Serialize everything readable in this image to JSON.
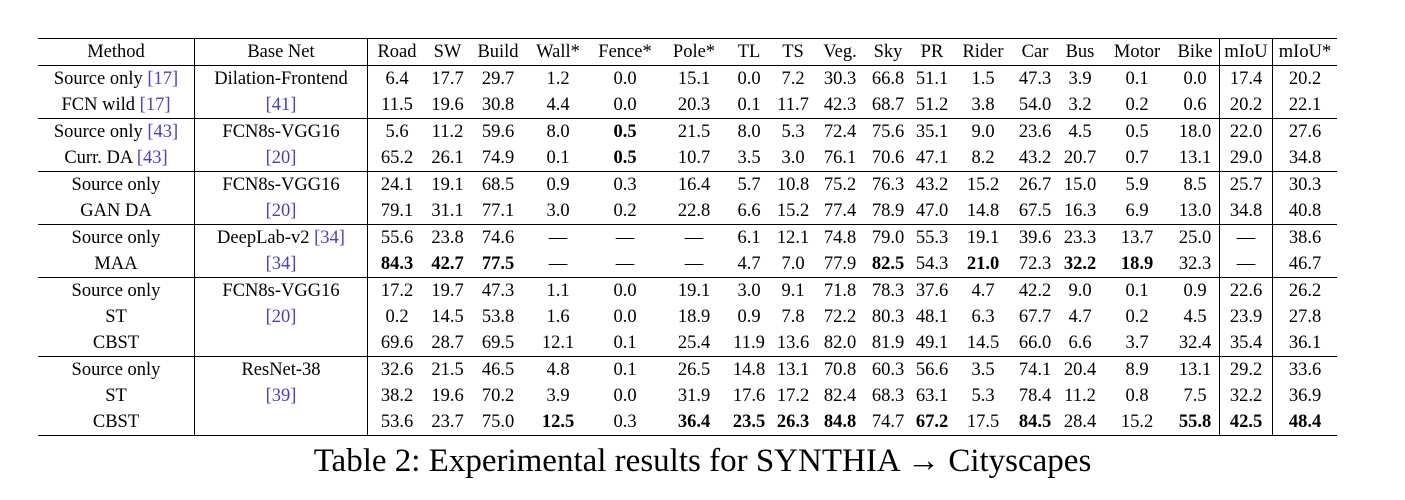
{
  "columns": [
    "Method",
    "Base Net",
    "Road",
    "SW",
    "Build",
    "Wall*",
    "Fence*",
    "Pole*",
    "TL",
    "TS",
    "Veg.",
    "Sky",
    "PR",
    "Rider",
    "Car",
    "Bus",
    "Motor",
    "Bike",
    "mIoU",
    "mIoU*"
  ],
  "column_widths": [
    156,
    172,
    58,
    43,
    58,
    62,
    72,
    66,
    44,
    44,
    50,
    46,
    42,
    60,
    44,
    46,
    68,
    48,
    52,
    64
  ],
  "groups": [
    {
      "rows": [
        {
          "method": "Source only",
          "method_cite": "[17]",
          "base": "Dilation-Frontend",
          "base_cite": "",
          "values": [
            "6.4",
            "17.7",
            "29.7",
            "1.2",
            "0.0",
            "15.1",
            "0.0",
            "7.2",
            "30.3",
            "66.8",
            "51.1",
            "1.5",
            "47.3",
            "3.9",
            "0.1",
            "0.0",
            "17.4",
            "20.2"
          ],
          "bold": []
        },
        {
          "method": "FCN wild",
          "method_cite": "[17]",
          "base": "",
          "base_cite": "[41]",
          "values": [
            "11.5",
            "19.6",
            "30.8",
            "4.4",
            "0.0",
            "20.3",
            "0.1",
            "11.7",
            "42.3",
            "68.7",
            "51.2",
            "3.8",
            "54.0",
            "3.2",
            "0.2",
            "0.6",
            "20.2",
            "22.1"
          ],
          "bold": []
        }
      ]
    },
    {
      "rows": [
        {
          "method": "Source only",
          "method_cite": "[43]",
          "base": "FCN8s-VGG16",
          "base_cite": "",
          "values": [
            "5.6",
            "11.2",
            "59.6",
            "8.0",
            "0.5",
            "21.5",
            "8.0",
            "5.3",
            "72.4",
            "75.6",
            "35.1",
            "9.0",
            "23.6",
            "4.5",
            "0.5",
            "18.0",
            "22.0",
            "27.6"
          ],
          "bold": [
            4
          ]
        },
        {
          "method": "Curr. DA",
          "method_cite": "[43]",
          "base": "",
          "base_cite": "[20]",
          "values": [
            "65.2",
            "26.1",
            "74.9",
            "0.1",
            "0.5",
            "10.7",
            "3.5",
            "3.0",
            "76.1",
            "70.6",
            "47.1",
            "8.2",
            "43.2",
            "20.7",
            "0.7",
            "13.1",
            "29.0",
            "34.8"
          ],
          "bold": [
            4
          ]
        }
      ]
    },
    {
      "rows": [
        {
          "method": "Source only",
          "method_cite": "",
          "base": "FCN8s-VGG16",
          "base_cite": "",
          "values": [
            "24.1",
            "19.1",
            "68.5",
            "0.9",
            "0.3",
            "16.4",
            "5.7",
            "10.8",
            "75.2",
            "76.3",
            "43.2",
            "15.2",
            "26.7",
            "15.0",
            "5.9",
            "8.5",
            "25.7",
            "30.3"
          ],
          "bold": []
        },
        {
          "method": "GAN DA",
          "method_cite": "",
          "base": "",
          "base_cite": "[20]",
          "values": [
            "79.1",
            "31.1",
            "77.1",
            "3.0",
            "0.2",
            "22.8",
            "6.6",
            "15.2",
            "77.4",
            "78.9",
            "47.0",
            "14.8",
            "67.5",
            "16.3",
            "6.9",
            "13.0",
            "34.8",
            "40.8"
          ],
          "bold": []
        }
      ]
    },
    {
      "rows": [
        {
          "method": "Source only",
          "method_cite": "",
          "base": "DeepLab-v2",
          "base_cite": "[34]",
          "values": [
            "55.6",
            "23.8",
            "74.6",
            "—",
            "—",
            "—",
            "6.1",
            "12.1",
            "74.8",
            "79.0",
            "55.3",
            "19.1",
            "39.6",
            "23.3",
            "13.7",
            "25.0",
            "—",
            "38.6"
          ],
          "bold": []
        },
        {
          "method": "MAA",
          "method_cite": "",
          "base": "",
          "base_cite": "[34]",
          "values": [
            "84.3",
            "42.7",
            "77.5",
            "—",
            "—",
            "—",
            "4.7",
            "7.0",
            "77.9",
            "82.5",
            "54.3",
            "21.0",
            "72.3",
            "32.2",
            "18.9",
            "32.3",
            "—",
            "46.7"
          ],
          "bold": [
            0,
            1,
            2,
            9,
            11,
            13,
            14
          ]
        }
      ]
    },
    {
      "rows": [
        {
          "method": "Source only",
          "method_cite": "",
          "base": "FCN8s-VGG16",
          "base_cite": "",
          "values": [
            "17.2",
            "19.7",
            "47.3",
            "1.1",
            "0.0",
            "19.1",
            "3.0",
            "9.1",
            "71.8",
            "78.3",
            "37.6",
            "4.7",
            "42.2",
            "9.0",
            "0.1",
            "0.9",
            "22.6",
            "26.2"
          ],
          "bold": []
        },
        {
          "method": "ST",
          "method_cite": "",
          "base": "",
          "base_cite": "[20]",
          "values": [
            "0.2",
            "14.5",
            "53.8",
            "1.6",
            "0.0",
            "18.9",
            "0.9",
            "7.8",
            "72.2",
            "80.3",
            "48.1",
            "6.3",
            "67.7",
            "4.7",
            "0.2",
            "4.5",
            "23.9",
            "27.8"
          ],
          "bold": []
        },
        {
          "method": "CBST",
          "method_cite": "",
          "base": "",
          "base_cite": "",
          "values": [
            "69.6",
            "28.7",
            "69.5",
            "12.1",
            "0.1",
            "25.4",
            "11.9",
            "13.6",
            "82.0",
            "81.9",
            "49.1",
            "14.5",
            "66.0",
            "6.6",
            "3.7",
            "32.4",
            "35.4",
            "36.1"
          ],
          "bold": []
        }
      ]
    },
    {
      "rows": [
        {
          "method": "Source only",
          "method_cite": "",
          "base": "ResNet-38",
          "base_cite": "",
          "values": [
            "32.6",
            "21.5",
            "46.5",
            "4.8",
            "0.1",
            "26.5",
            "14.8",
            "13.1",
            "70.8",
            "60.3",
            "56.6",
            "3.5",
            "74.1",
            "20.4",
            "8.9",
            "13.1",
            "29.2",
            "33.6"
          ],
          "bold": []
        },
        {
          "method": "ST",
          "method_cite": "",
          "base": "",
          "base_cite": "[39]",
          "values": [
            "38.2",
            "19.6",
            "70.2",
            "3.9",
            "0.0",
            "31.9",
            "17.6",
            "17.2",
            "82.4",
            "68.3",
            "63.1",
            "5.3",
            "78.4",
            "11.2",
            "0.8",
            "7.5",
            "32.2",
            "36.9"
          ],
          "bold": []
        },
        {
          "method": "CBST",
          "method_cite": "",
          "base": "",
          "base_cite": "",
          "values": [
            "53.6",
            "23.7",
            "75.0",
            "12.5",
            "0.3",
            "36.4",
            "23.5",
            "26.3",
            "84.8",
            "74.7",
            "67.2",
            "17.5",
            "84.5",
            "28.4",
            "15.2",
            "55.8",
            "42.5",
            "48.4"
          ],
          "bold": [
            3,
            5,
            6,
            7,
            8,
            10,
            12,
            15,
            16,
            17
          ]
        }
      ]
    }
  ],
  "caption": "Table 2: Experimental results for SYNTHIA → Cityscapes"
}
